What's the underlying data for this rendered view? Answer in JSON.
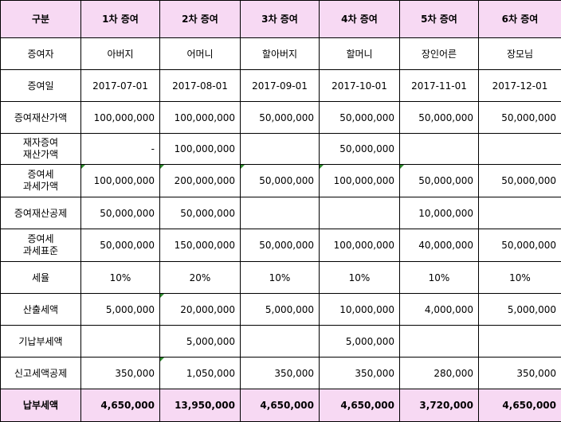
{
  "headers": [
    "구분",
    "1차 증여",
    "2차 증여",
    "3차 증여",
    "4차 증여",
    "5차 증여",
    "6차 증여"
  ],
  "rows": [
    {
      "label": "증여자",
      "values": [
        "아버지",
        "어머니",
        "할아버지",
        "할머니",
        "장인어른",
        "장모님"
      ]
    },
    {
      "label": "증여일",
      "values": [
        "2017-07-01",
        "2017-08-01",
        "2017-09-01",
        "2017-10-01",
        "2017-11-01",
        "2017-12-01"
      ]
    },
    {
      "label": "증여재산가액",
      "values": [
        "100,000,000",
        "100,000,000",
        "50,000,000",
        "50,000,000",
        "50,000,000",
        "50,000,000"
      ]
    },
    {
      "label_line1": "재자증여",
      "label_line2": "재산가액",
      "values": [
        "-",
        "100,000,000",
        "",
        "50,000,000",
        "",
        ""
      ]
    },
    {
      "label_line1": "증여세",
      "label_line2": "과세가액",
      "values": [
        "100,000,000",
        "200,000,000",
        "50,000,000",
        "100,000,000",
        "50,000,000",
        "50,000,000"
      ]
    },
    {
      "label": "증여재산공제",
      "values": [
        "50,000,000",
        "50,000,000",
        "",
        "",
        "10,000,000",
        ""
      ]
    },
    {
      "label_line1": "증여세",
      "label_line2": "과세표준",
      "values": [
        "50,000,000",
        "150,000,000",
        "50,000,000",
        "100,000,000",
        "40,000,000",
        "50,000,000"
      ]
    },
    {
      "label": "세율",
      "values": [
        "10%",
        "20%",
        "10%",
        "10%",
        "10%",
        "10%"
      ]
    },
    {
      "label": "산출세액",
      "values": [
        "5,000,000",
        "20,000,000",
        "5,000,000",
        "10,000,000",
        "4,000,000",
        "5,000,000"
      ]
    },
    {
      "label": "기납부세액",
      "values": [
        "",
        "5,000,000",
        "",
        "5,000,000",
        "",
        ""
      ]
    },
    {
      "label": "신고세액공제",
      "values": [
        "350,000",
        "1,050,000",
        "350,000",
        "350,000",
        "280,000",
        "350,000"
      ]
    }
  ],
  "total": {
    "label": "납부세액",
    "values": [
      "4,650,000",
      "13,950,000",
      "4,650,000",
      "4,650,000",
      "3,720,000",
      "4,650,000"
    ]
  },
  "colors": {
    "header_bg": "#f7d9f3",
    "total_bg": "#f7d9f3",
    "comment_marker": "#2e8b2e"
  }
}
